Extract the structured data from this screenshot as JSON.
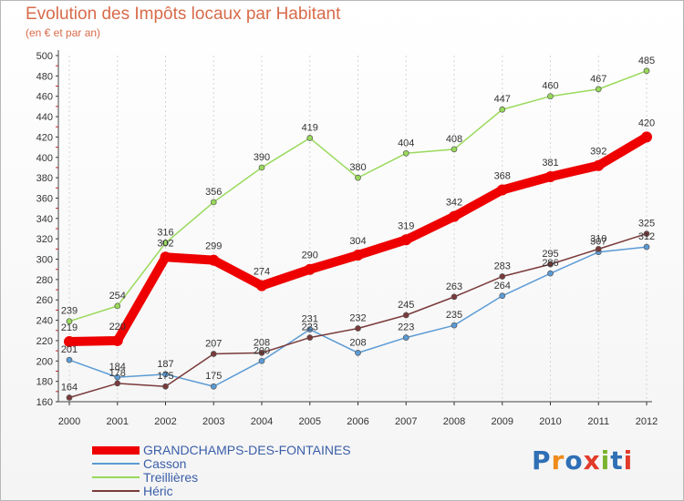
{
  "header": {
    "title": "Evolution des Impôts locaux par Habitant",
    "subtitle": "(en € et par an)"
  },
  "chart_data": {
    "type": "line",
    "title": "Evolution des Impôts locaux par Habitant",
    "subtitle": "(en € et par an)",
    "xlabel": "",
    "ylabel": "",
    "ylim": [
      160,
      500
    ],
    "y_ticks": [
      160,
      180,
      200,
      220,
      240,
      260,
      280,
      300,
      320,
      340,
      360,
      380,
      400,
      420,
      440,
      460,
      480,
      500
    ],
    "categories": [
      "2000",
      "2001",
      "2002",
      "2003",
      "2004",
      "2005",
      "2006",
      "2007",
      "2008",
      "2009",
      "2010",
      "2011",
      "2012"
    ],
    "grid": "vertical dashed",
    "legend_position": "bottom-left",
    "series": [
      {
        "name": "GRANDCHAMPS-DES-FONTAINES",
        "color": "#ee0000",
        "emphasis": "bold",
        "values": [
          219,
          220,
          302,
          299,
          274,
          290,
          304,
          319,
          342,
          368,
          381,
          392,
          420
        ],
        "labels": [
          "219",
          "220",
          "302",
          "299",
          "274",
          "290",
          "304",
          "319",
          "342",
          "368",
          "381",
          "392",
          "420"
        ]
      },
      {
        "name": "Casson",
        "color": "#5b9bd5",
        "emphasis": "normal",
        "values": [
          201,
          184,
          187,
          175,
          200,
          231,
          208,
          223,
          235,
          264,
          286,
          307,
          312
        ],
        "labels": [
          "201",
          "184",
          "187",
          "175",
          "200",
          "231",
          "208",
          "223",
          "235",
          "264",
          "286",
          "307",
          "312"
        ]
      },
      {
        "name": "Treillières",
        "color": "#99d95b",
        "emphasis": "normal",
        "values": [
          239,
          254,
          316,
          356,
          390,
          419,
          380,
          404,
          408,
          447,
          460,
          467,
          485
        ],
        "labels": [
          "239",
          "254",
          "316",
          "356",
          "390",
          "419",
          "380",
          "404",
          "408",
          "447",
          "460",
          "467",
          "485"
        ]
      },
      {
        "name": "Héric",
        "color": "#7a3a3a",
        "emphasis": "normal",
        "values": [
          164,
          178,
          175,
          207,
          208,
          223,
          232,
          245,
          263,
          283,
          295,
          310,
          325
        ],
        "labels": [
          "164",
          "178",
          "175",
          "207",
          "208",
          "223",
          "232",
          "245",
          "263",
          "283",
          "295",
          "310",
          "325"
        ]
      }
    ]
  },
  "logo": {
    "text": "Proxiti"
  }
}
